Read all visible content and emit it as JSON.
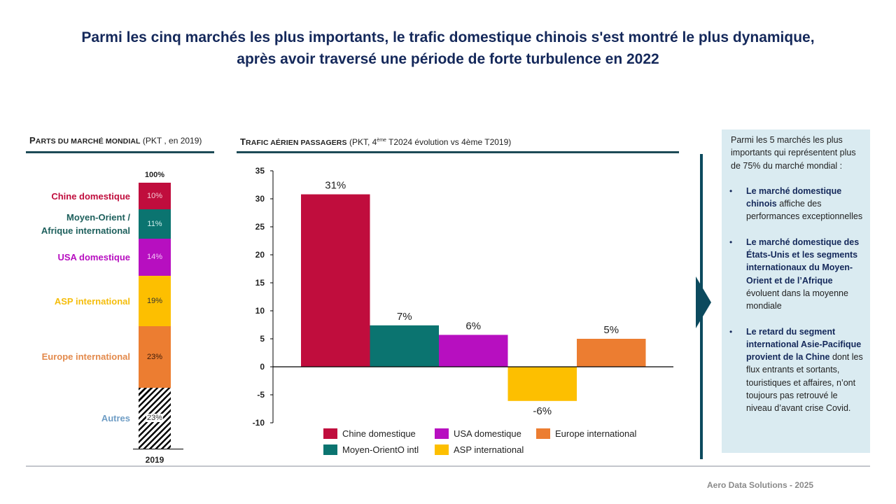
{
  "title": {
    "line1": "Parmi les cinq marchés les plus importants, le trafic domestique chinois s'est montré le plus dynamique,",
    "line2": "après avoir traversé une période de forte turbulence en 2022"
  },
  "left_section": {
    "heading_first": "P",
    "heading_sc": "arts du marché mondial",
    "heading_rest": " (PKT , en 2019)",
    "total_label": "100%",
    "year_label": "2019"
  },
  "right_section": {
    "heading_first": "T",
    "heading_sc": "rafic aérien passagers",
    "heading_rest_a": " (PKT, 4",
    "heading_sup": "ème",
    "heading_rest_b": " T2024 évolution vs 4ème T2019)"
  },
  "chart_data": [
    {
      "type": "bar",
      "stacked": true,
      "title": "Parts du marché mondial (PKT, en 2019)",
      "categories": [
        "2019"
      ],
      "total_label": "100%",
      "series": [
        {
          "name": "Chine domestique",
          "values": [
            10
          ],
          "label": "10%",
          "color": "#c00d3d"
        },
        {
          "name": "Moyen-Orient / Afrique international",
          "values": [
            11
          ],
          "label": "11%",
          "color": "#0b7470"
        },
        {
          "name": "USA domestique",
          "values": [
            14
          ],
          "label": "14%",
          "color": "#b70fc0"
        },
        {
          "name": "ASP international",
          "values": [
            19
          ],
          "label": "19%",
          "color": "#fdbf00"
        },
        {
          "name": "Europe international",
          "values": [
            23
          ],
          "label": "23%",
          "color": "#ec7d31"
        },
        {
          "name": "Autres",
          "values": [
            23
          ],
          "label": "23%",
          "color": "hatch"
        }
      ],
      "label_colors": {
        "Chine domestique": "#c00d3d",
        "Moyen-Orient / Afrique international": "#1d5f5c",
        "USA domestique": "#b70fc0",
        "ASP international": "#f5bd0b",
        "Europe international": "#e38a4c",
        "Autres": "#6f9dc5"
      }
    },
    {
      "type": "bar",
      "title": "Trafic aérien passagers (PKT, 4ème T2024 évolution vs 4ème T2019)",
      "xlabel": "",
      "ylabel": "",
      "ylim": [
        -10,
        35
      ],
      "yticks": [
        35,
        30,
        25,
        20,
        15,
        10,
        5,
        0,
        -5,
        -10
      ],
      "grid": false,
      "categories": [
        "Chine domestique",
        "Moyen-OrientO intl",
        "USA domestique",
        "ASP international",
        "Europe international"
      ],
      "values": [
        30.8,
        7.4,
        5.7,
        -6.1,
        5.0
      ],
      "data_labels": [
        "31%",
        "7%",
        "6%",
        "-6%",
        "5%"
      ],
      "colors": [
        "#c00d3d",
        "#0b7470",
        "#b70fc0",
        "#fdbf00",
        "#ec7d31"
      ],
      "legend": {
        "placement": "bottom",
        "order": [
          "Chine domestique",
          "USA domestique",
          "Europe international",
          "Moyen-OrientO intl",
          "ASP international"
        ]
      }
    }
  ],
  "panel": {
    "intro": "Parmi les 5 marchés les plus importants qui représentent plus de 75% du marché mondial :",
    "bullets": [
      {
        "bold": "Le marché domestique chinois",
        "text": " affiche des performances exceptionnelles"
      },
      {
        "bold": "Le marché domestique des États-Unis et les segments internationaux du Moyen-Orient et de l’Afrique",
        "text": " évoluent dans la moyenne mondiale"
      },
      {
        "bold": "Le retard du segment international Asie-Pacifique provient de la Chine",
        "text": " dont les flux entrants et sortants, touristiques et affaires, n’ont toujours pas retrouvé le niveau d’avant crise Covid."
      }
    ],
    "bullet_glyph": "•"
  },
  "footer": "Aero Data Solutions - 2025"
}
